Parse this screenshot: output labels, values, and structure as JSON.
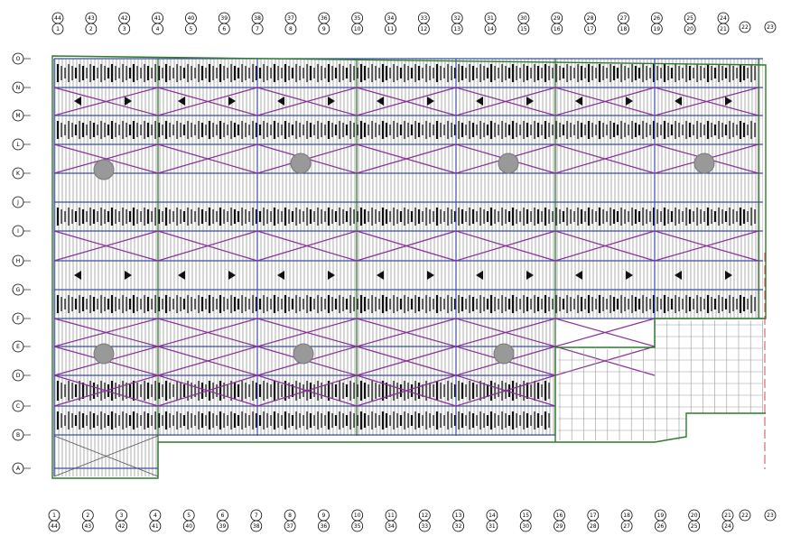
{
  "row_labels": [
    "O",
    "N",
    "M",
    "L",
    "K",
    "J",
    "I",
    "H",
    "G",
    "F",
    "E",
    "D",
    "C",
    "B",
    "A"
  ],
  "top_axis": [
    {
      "upper": "44",
      "lower": "1"
    },
    {
      "upper": "43",
      "lower": "2"
    },
    {
      "upper": "42",
      "lower": "3"
    },
    {
      "upper": "41",
      "lower": "4"
    },
    {
      "upper": "40",
      "lower": "5"
    },
    {
      "upper": "39",
      "lower": "6"
    },
    {
      "upper": "38",
      "lower": "7"
    },
    {
      "upper": "37",
      "lower": "8"
    },
    {
      "upper": "36",
      "lower": "9"
    },
    {
      "upper": "35",
      "lower": "10"
    },
    {
      "upper": "34",
      "lower": "11"
    },
    {
      "upper": "33",
      "lower": "12"
    },
    {
      "upper": "32",
      "lower": "13"
    },
    {
      "upper": "31",
      "lower": "14"
    },
    {
      "upper": "30",
      "lower": "15"
    },
    {
      "upper": "29",
      "lower": "16"
    },
    {
      "upper": "28",
      "lower": "17"
    },
    {
      "upper": "27",
      "lower": "18"
    },
    {
      "upper": "26",
      "lower": "19"
    },
    {
      "upper": "25",
      "lower": "20"
    },
    {
      "upper": "24",
      "lower": "21"
    }
  ],
  "top_extra": [
    "22",
    "23"
  ],
  "bottom_axis": [
    {
      "upper": "1",
      "lower": "44"
    },
    {
      "upper": "2",
      "lower": "43"
    },
    {
      "upper": "3",
      "lower": "42"
    },
    {
      "upper": "4",
      "lower": "41"
    },
    {
      "upper": "5",
      "lower": "40"
    },
    {
      "upper": "6",
      "lower": "39"
    },
    {
      "upper": "7",
      "lower": "38"
    },
    {
      "upper": "8",
      "lower": "37"
    },
    {
      "upper": "9",
      "lower": "36"
    },
    {
      "upper": "10",
      "lower": "35"
    },
    {
      "upper": "11",
      "lower": "34"
    },
    {
      "upper": "12",
      "lower": "33"
    },
    {
      "upper": "13",
      "lower": "32"
    },
    {
      "upper": "14",
      "lower": "31"
    },
    {
      "upper": "15",
      "lower": "30"
    },
    {
      "upper": "16",
      "lower": "29"
    },
    {
      "upper": "17",
      "lower": "28"
    },
    {
      "upper": "18",
      "lower": "27"
    },
    {
      "upper": "19",
      "lower": "26"
    },
    {
      "upper": "20",
      "lower": "25"
    },
    {
      "upper": "21",
      "lower": "24"
    }
  ],
  "bottom_extra": [
    "22",
    "23"
  ]
}
